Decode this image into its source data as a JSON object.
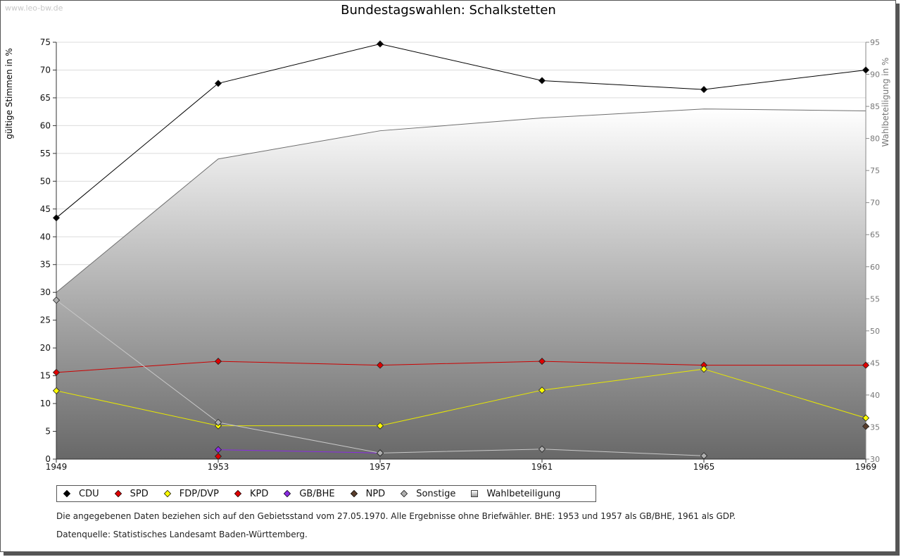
{
  "watermark": "www.leo-bw.de",
  "chart_data": {
    "type": "line",
    "title": "Bundestagswahlen: Schalkstetten",
    "ylabel": "gültige Stimmen in %",
    "y2label": "Wahlbeteiligung in %",
    "ylim": [
      0,
      75
    ],
    "y2lim": [
      30,
      95
    ],
    "yticks": [
      0,
      5,
      10,
      15,
      20,
      25,
      30,
      35,
      40,
      45,
      50,
      55,
      60,
      65,
      70,
      75
    ],
    "y2ticks": [
      30,
      35,
      40,
      45,
      50,
      55,
      60,
      65,
      70,
      75,
      80,
      85,
      90,
      95
    ],
    "x": [
      1949,
      1953,
      1957,
      1961,
      1965,
      1969
    ],
    "series": [
      {
        "name": "CDU",
        "color": "#000000",
        "line": "#000000",
        "values": [
          43.4,
          67.6,
          74.7,
          68.1,
          66.5,
          70.0
        ]
      },
      {
        "name": "SPD",
        "color": "#e00000",
        "line": "#cc0000",
        "values": [
          15.6,
          17.6,
          16.9,
          17.6,
          16.9,
          16.9
        ]
      },
      {
        "name": "FDP/DVP",
        "color": "#ffff00",
        "line": "#e8e800",
        "values": [
          12.3,
          6.0,
          6.0,
          12.4,
          16.2,
          7.4
        ]
      },
      {
        "name": "KPD",
        "color": "#e00000",
        "line": "#cc0000",
        "values": [
          null,
          0.5,
          null,
          null,
          null,
          null
        ]
      },
      {
        "name": "GB/BHE",
        "color": "#8a2be2",
        "line": "#8a2be2",
        "values": [
          null,
          1.7,
          1.1,
          null,
          null,
          null
        ]
      },
      {
        "name": "NPD",
        "color": "#5a3d2b",
        "line": "#5a3d2b",
        "values": [
          null,
          null,
          null,
          null,
          null,
          5.9
        ]
      },
      {
        "name": "Sonstige",
        "color": "#b0b0b0",
        "line": "#c8c8c8",
        "values": [
          28.6,
          6.6,
          1.1,
          1.8,
          0.6,
          null
        ]
      }
    ],
    "turnout": {
      "name": "Wahlbeteiligung",
      "axis": "right",
      "values": [
        56.0,
        76.8,
        81.2,
        83.2,
        84.6,
        84.3
      ]
    },
    "legend": [
      "CDU",
      "SPD",
      "FDP/DVP",
      "KPD",
      "GB/BHE",
      "NPD",
      "Sonstige",
      "Wahlbeteiligung"
    ]
  },
  "notes": {
    "line1": "Die angegebenen Daten beziehen sich auf den Gebietsstand vom 27.05.1970. Alle Ergebnisse ohne Briefwähler. BHE: 1953 und 1957 als GB/BHE, 1961 als GDP.",
    "line2": "Datenquelle: Statistisches Landesamt Baden-Württemberg."
  }
}
